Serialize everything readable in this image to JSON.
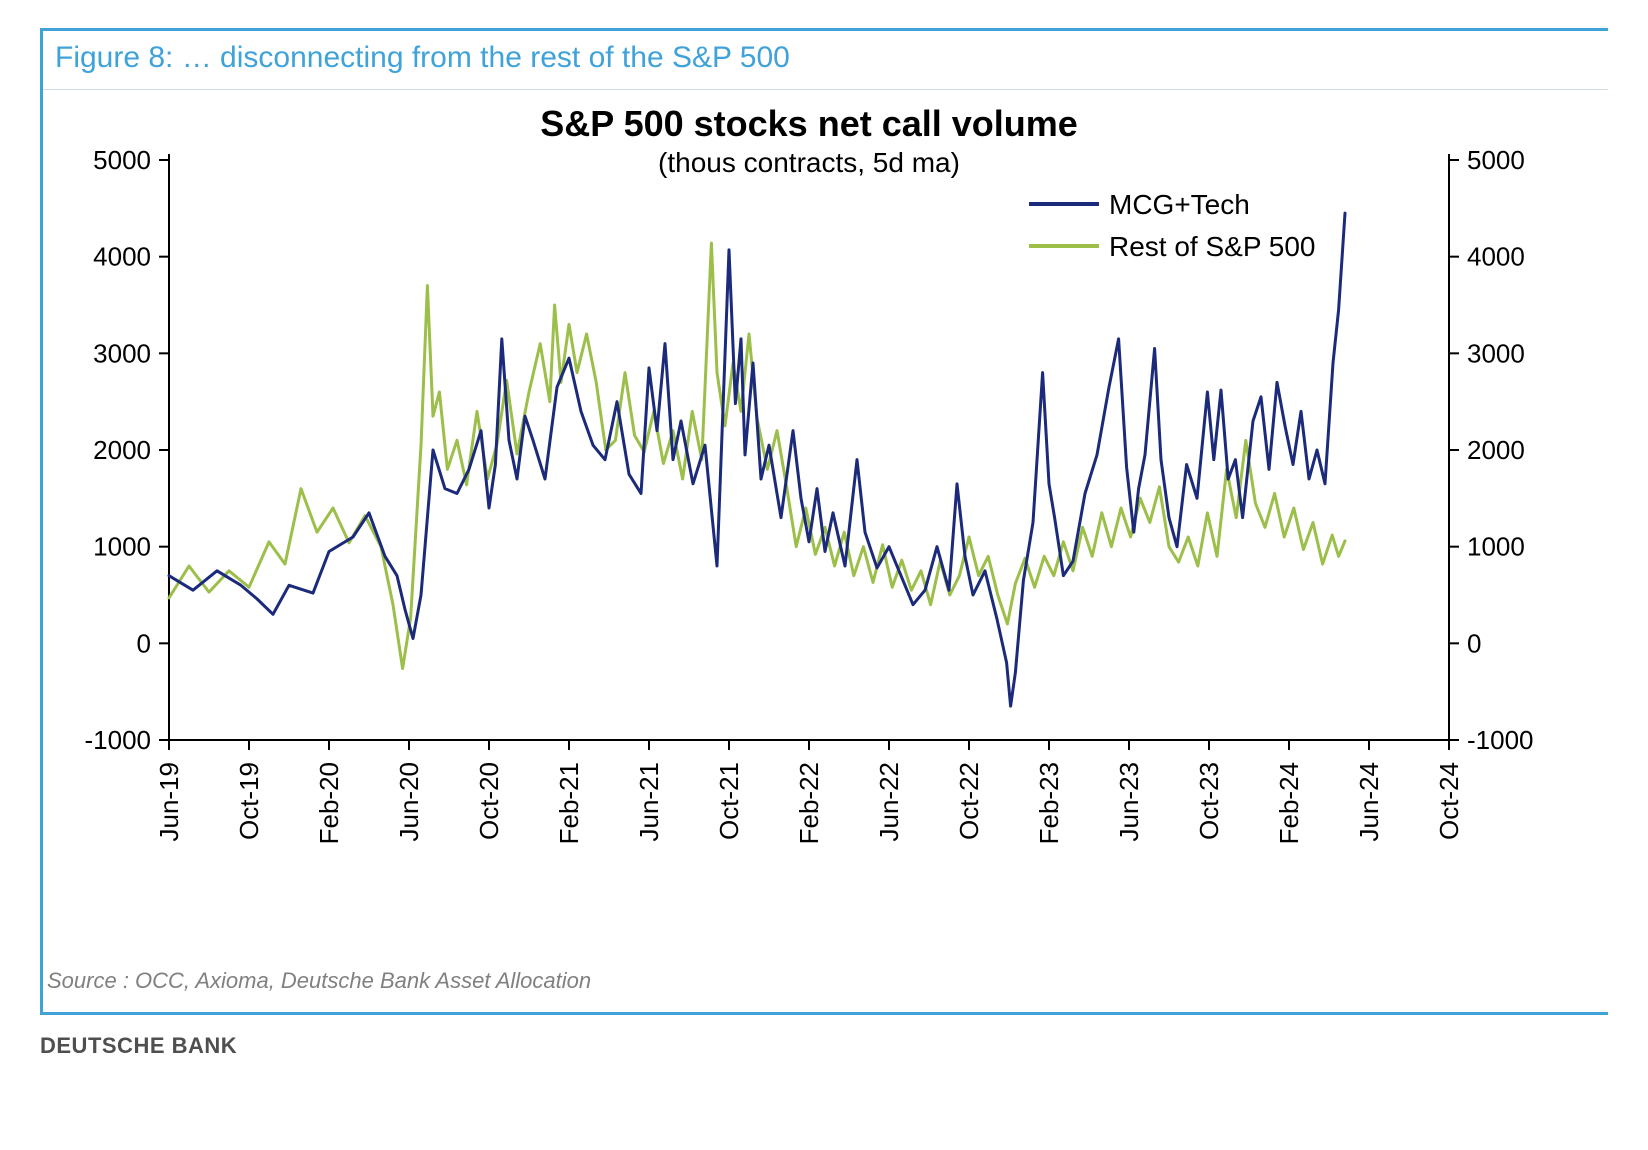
{
  "frame_border_color": "#3fa2d9",
  "figure_title": "Figure 8: … disconnecting from the rest of the S&P 500",
  "figure_title_color": "#3fa2d9",
  "source_text": "Source : OCC, Axioma, Deutsche Bank Asset Allocation",
  "credit_text": "DEUTSCHE BANK",
  "chart": {
    "type": "line",
    "title": "S&P 500 stocks net call volume",
    "subtitle": "(thous contracts, 5d ma)",
    "title_fontsize": 36,
    "subtitle_fontsize": 28,
    "background_color": "#ffffff",
    "axis_color": "#000000",
    "line_width": 3,
    "ylim": [
      -1000,
      5000
    ],
    "ytick_step": 1000,
    "yticks": [
      -1000,
      0,
      1000,
      2000,
      3000,
      4000,
      5000
    ],
    "left_axis": true,
    "right_axis": true,
    "x_labels": [
      "Jun-19",
      "Oct-19",
      "Feb-20",
      "Jun-20",
      "Oct-20",
      "Feb-21",
      "Jun-21",
      "Oct-21",
      "Feb-22",
      "Jun-22",
      "Oct-22",
      "Feb-23",
      "Jun-23",
      "Oct-23",
      "Feb-24",
      "Jun-24",
      "Oct-24"
    ],
    "x_label_rotation": -90,
    "legend": {
      "position": "top-right-inside",
      "items": [
        {
          "label": "MCG+Tech",
          "color": "#1b2a7a"
        },
        {
          "label": "Rest of S&P 500",
          "color": "#9cbf4a"
        }
      ]
    },
    "series": [
      {
        "name": "MCG+Tech",
        "color": "#1b2a7a",
        "data": [
          [
            0,
            700
          ],
          [
            0.3,
            550
          ],
          [
            0.6,
            750
          ],
          [
            0.9,
            600
          ],
          [
            1.1,
            460
          ],
          [
            1.3,
            300
          ],
          [
            1.5,
            600
          ],
          [
            1.8,
            520
          ],
          [
            2.0,
            950
          ],
          [
            2.3,
            1100
          ],
          [
            2.5,
            1350
          ],
          [
            2.7,
            900
          ],
          [
            2.85,
            700
          ],
          [
            2.95,
            350
          ],
          [
            3.05,
            50
          ],
          [
            3.15,
            500
          ],
          [
            3.3,
            2000
          ],
          [
            3.45,
            1600
          ],
          [
            3.6,
            1550
          ],
          [
            3.75,
            1800
          ],
          [
            3.9,
            2200
          ],
          [
            4.0,
            1400
          ],
          [
            4.08,
            1850
          ],
          [
            4.16,
            3150
          ],
          [
            4.25,
            2100
          ],
          [
            4.35,
            1700
          ],
          [
            4.45,
            2350
          ],
          [
            4.55,
            2100
          ],
          [
            4.7,
            1700
          ],
          [
            4.85,
            2650
          ],
          [
            5.0,
            2950
          ],
          [
            5.15,
            2400
          ],
          [
            5.3,
            2050
          ],
          [
            5.45,
            1900
          ],
          [
            5.6,
            2500
          ],
          [
            5.75,
            1750
          ],
          [
            5.9,
            1550
          ],
          [
            6.0,
            2850
          ],
          [
            6.1,
            2200
          ],
          [
            6.2,
            3100
          ],
          [
            6.3,
            1900
          ],
          [
            6.4,
            2300
          ],
          [
            6.55,
            1650
          ],
          [
            6.7,
            2050
          ],
          [
            6.85,
            800
          ],
          [
            7.0,
            4070
          ],
          [
            7.08,
            2480
          ],
          [
            7.15,
            3150
          ],
          [
            7.2,
            1950
          ],
          [
            7.3,
            2900
          ],
          [
            7.4,
            1700
          ],
          [
            7.5,
            2050
          ],
          [
            7.65,
            1300
          ],
          [
            7.8,
            2200
          ],
          [
            7.9,
            1500
          ],
          [
            8.0,
            1050
          ],
          [
            8.1,
            1600
          ],
          [
            8.2,
            950
          ],
          [
            8.3,
            1350
          ],
          [
            8.45,
            800
          ],
          [
            8.6,
            1900
          ],
          [
            8.7,
            1150
          ],
          [
            8.85,
            780
          ],
          [
            9.0,
            1000
          ],
          [
            9.15,
            700
          ],
          [
            9.3,
            400
          ],
          [
            9.45,
            550
          ],
          [
            9.6,
            1000
          ],
          [
            9.75,
            550
          ],
          [
            9.85,
            1650
          ],
          [
            9.95,
            900
          ],
          [
            10.05,
            500
          ],
          [
            10.2,
            750
          ],
          [
            10.35,
            250
          ],
          [
            10.47,
            -200
          ],
          [
            10.52,
            -650
          ],
          [
            10.58,
            -300
          ],
          [
            10.68,
            650
          ],
          [
            10.8,
            1250
          ],
          [
            10.92,
            2800
          ],
          [
            11.0,
            1650
          ],
          [
            11.07,
            1300
          ],
          [
            11.18,
            700
          ],
          [
            11.3,
            850
          ],
          [
            11.45,
            1550
          ],
          [
            11.6,
            1950
          ],
          [
            11.75,
            2650
          ],
          [
            11.87,
            3150
          ],
          [
            11.97,
            1820
          ],
          [
            12.06,
            1150
          ],
          [
            12.12,
            1600
          ],
          [
            12.2,
            1950
          ],
          [
            12.32,
            3050
          ],
          [
            12.4,
            1900
          ],
          [
            12.5,
            1300
          ],
          [
            12.6,
            1000
          ],
          [
            12.72,
            1850
          ],
          [
            12.85,
            1500
          ],
          [
            12.98,
            2600
          ],
          [
            13.06,
            1900
          ],
          [
            13.15,
            2620
          ],
          [
            13.24,
            1700
          ],
          [
            13.33,
            1900
          ],
          [
            13.42,
            1300
          ],
          [
            13.55,
            2300
          ],
          [
            13.65,
            2550
          ],
          [
            13.75,
            1800
          ],
          [
            13.85,
            2700
          ],
          [
            13.95,
            2250
          ],
          [
            14.05,
            1850
          ],
          [
            14.15,
            2400
          ],
          [
            14.25,
            1700
          ],
          [
            14.35,
            2000
          ],
          [
            14.45,
            1650
          ],
          [
            14.55,
            2900
          ],
          [
            14.62,
            3450
          ],
          [
            14.7,
            4450
          ]
        ]
      },
      {
        "name": "Rest of S&P 500",
        "color": "#9cbf4a",
        "data": [
          [
            0,
            470
          ],
          [
            0.25,
            800
          ],
          [
            0.5,
            530
          ],
          [
            0.75,
            750
          ],
          [
            1.0,
            580
          ],
          [
            1.25,
            1050
          ],
          [
            1.45,
            820
          ],
          [
            1.65,
            1600
          ],
          [
            1.85,
            1150
          ],
          [
            2.05,
            1400
          ],
          [
            2.25,
            1040
          ],
          [
            2.45,
            1320
          ],
          [
            2.65,
            1000
          ],
          [
            2.8,
            400
          ],
          [
            2.92,
            -260
          ],
          [
            3.02,
            260
          ],
          [
            3.15,
            2050
          ],
          [
            3.23,
            3700
          ],
          [
            3.3,
            2350
          ],
          [
            3.38,
            2600
          ],
          [
            3.48,
            1800
          ],
          [
            3.6,
            2100
          ],
          [
            3.72,
            1640
          ],
          [
            3.85,
            2400
          ],
          [
            3.98,
            1700
          ],
          [
            4.1,
            2060
          ],
          [
            4.22,
            2720
          ],
          [
            4.35,
            1960
          ],
          [
            4.5,
            2600
          ],
          [
            4.64,
            3100
          ],
          [
            4.76,
            2500
          ],
          [
            4.82,
            3500
          ],
          [
            4.9,
            2700
          ],
          [
            5.0,
            3300
          ],
          [
            5.1,
            2800
          ],
          [
            5.22,
            3200
          ],
          [
            5.34,
            2700
          ],
          [
            5.46,
            2000
          ],
          [
            5.58,
            2100
          ],
          [
            5.7,
            2800
          ],
          [
            5.82,
            2150
          ],
          [
            5.94,
            1980
          ],
          [
            6.06,
            2400
          ],
          [
            6.18,
            1860
          ],
          [
            6.3,
            2200
          ],
          [
            6.42,
            1700
          ],
          [
            6.54,
            2400
          ],
          [
            6.66,
            1900
          ],
          [
            6.78,
            4140
          ],
          [
            6.85,
            2800
          ],
          [
            6.95,
            2250
          ],
          [
            7.05,
            2900
          ],
          [
            7.15,
            2400
          ],
          [
            7.25,
            3200
          ],
          [
            7.35,
            2330
          ],
          [
            7.48,
            1800
          ],
          [
            7.6,
            2200
          ],
          [
            7.72,
            1620
          ],
          [
            7.84,
            1000
          ],
          [
            7.96,
            1400
          ],
          [
            8.08,
            920
          ],
          [
            8.2,
            1200
          ],
          [
            8.32,
            800
          ],
          [
            8.44,
            1150
          ],
          [
            8.56,
            700
          ],
          [
            8.68,
            1000
          ],
          [
            8.8,
            630
          ],
          [
            8.92,
            1020
          ],
          [
            9.04,
            580
          ],
          [
            9.16,
            860
          ],
          [
            9.28,
            550
          ],
          [
            9.4,
            750
          ],
          [
            9.52,
            400
          ],
          [
            9.64,
            850
          ],
          [
            9.76,
            500
          ],
          [
            9.88,
            700
          ],
          [
            10.0,
            1100
          ],
          [
            10.12,
            700
          ],
          [
            10.24,
            900
          ],
          [
            10.36,
            500
          ],
          [
            10.48,
            200
          ],
          [
            10.58,
            620
          ],
          [
            10.7,
            880
          ],
          [
            10.82,
            580
          ],
          [
            10.94,
            900
          ],
          [
            11.06,
            700
          ],
          [
            11.18,
            1050
          ],
          [
            11.3,
            750
          ],
          [
            11.42,
            1200
          ],
          [
            11.54,
            900
          ],
          [
            11.66,
            1350
          ],
          [
            11.78,
            1000
          ],
          [
            11.9,
            1400
          ],
          [
            12.02,
            1100
          ],
          [
            12.14,
            1500
          ],
          [
            12.26,
            1250
          ],
          [
            12.38,
            1620
          ],
          [
            12.5,
            1000
          ],
          [
            12.62,
            840
          ],
          [
            12.74,
            1100
          ],
          [
            12.86,
            800
          ],
          [
            12.98,
            1350
          ],
          [
            13.1,
            900
          ],
          [
            13.22,
            1800
          ],
          [
            13.34,
            1300
          ],
          [
            13.46,
            2100
          ],
          [
            13.58,
            1450
          ],
          [
            13.7,
            1200
          ],
          [
            13.82,
            1550
          ],
          [
            13.94,
            1100
          ],
          [
            14.06,
            1400
          ],
          [
            14.18,
            970
          ],
          [
            14.3,
            1250
          ],
          [
            14.42,
            820
          ],
          [
            14.54,
            1120
          ],
          [
            14.62,
            900
          ],
          [
            14.7,
            1060
          ]
        ]
      }
    ]
  }
}
